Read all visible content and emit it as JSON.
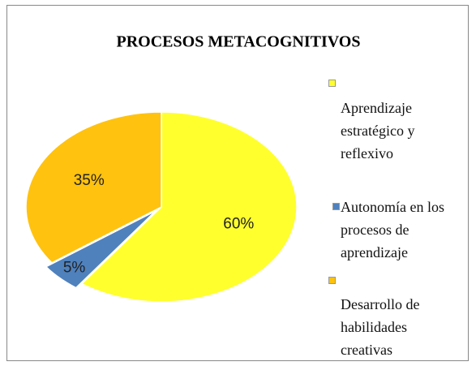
{
  "chart_data": {
    "type": "pie",
    "title": "PROCESOS METACOGNITIVOS",
    "categories": [
      "Aprendizaje estratégico  y reflexivo",
      "Autonomía en los procesos de aprendizaje",
      "Desarrollo de habilidades creativas"
    ],
    "values": [
      60,
      5,
      35
    ],
    "value_labels": [
      "60%",
      "5%",
      "35%"
    ],
    "colors": [
      "#ffff2e",
      "#4f81bd",
      "#ffc20e"
    ],
    "legend": "right"
  }
}
